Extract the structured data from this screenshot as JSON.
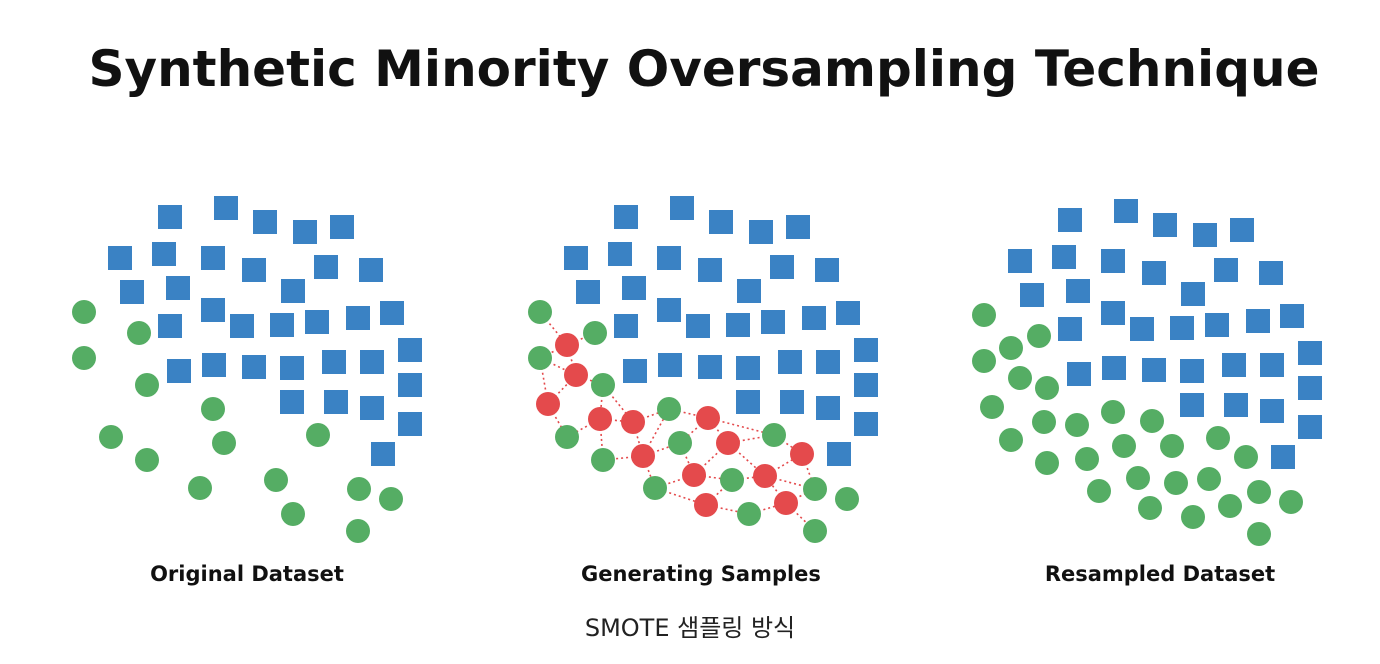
{
  "title": "Synthetic Minority Oversampling Technique",
  "caption": "SMOTE 샘플링 방식",
  "colors": {
    "majority": "#3a82c4",
    "minority": "#55ad64",
    "synthetic": "#e44a4c",
    "link": "#e44a4c"
  },
  "panels": [
    {
      "label": "Original Dataset",
      "majority": [
        [
          170,
          217
        ],
        [
          226,
          208
        ],
        [
          265,
          222
        ],
        [
          305,
          232
        ],
        [
          342,
          227
        ],
        [
          120,
          258
        ],
        [
          164,
          254
        ],
        [
          213,
          258
        ],
        [
          254,
          270
        ],
        [
          326,
          267
        ],
        [
          371,
          270
        ],
        [
          132,
          292
        ],
        [
          178,
          288
        ],
        [
          293,
          291
        ],
        [
          170,
          326
        ],
        [
          213,
          310
        ],
        [
          242,
          326
        ],
        [
          282,
          325
        ],
        [
          317,
          322
        ],
        [
          358,
          318
        ],
        [
          392,
          313
        ],
        [
          179,
          371
        ],
        [
          214,
          365
        ],
        [
          254,
          367
        ],
        [
          292,
          368
        ],
        [
          334,
          362
        ],
        [
          372,
          362
        ],
        [
          410,
          350
        ],
        [
          410,
          385
        ],
        [
          292,
          402
        ],
        [
          336,
          402
        ],
        [
          372,
          408
        ],
        [
          410,
          424
        ],
        [
          383,
          454
        ]
      ],
      "minority": [
        [
          84,
          312
        ],
        [
          139,
          333
        ],
        [
          84,
          358
        ],
        [
          147,
          385
        ],
        [
          213,
          409
        ],
        [
          111,
          437
        ],
        [
          224,
          443
        ],
        [
          318,
          435
        ],
        [
          147,
          460
        ],
        [
          200,
          488
        ],
        [
          276,
          480
        ],
        [
          359,
          489
        ],
        [
          391,
          499
        ],
        [
          293,
          514
        ],
        [
          358,
          531
        ]
      ],
      "synthetic": [],
      "links": []
    },
    {
      "label": "Generating Samples",
      "majority": [
        [
          626,
          217
        ],
        [
          682,
          208
        ],
        [
          721,
          222
        ],
        [
          761,
          232
        ],
        [
          798,
          227
        ],
        [
          576,
          258
        ],
        [
          620,
          254
        ],
        [
          669,
          258
        ],
        [
          710,
          270
        ],
        [
          782,
          267
        ],
        [
          827,
          270
        ],
        [
          588,
          292
        ],
        [
          634,
          288
        ],
        [
          749,
          291
        ],
        [
          626,
          326
        ],
        [
          669,
          310
        ],
        [
          698,
          326
        ],
        [
          738,
          325
        ],
        [
          773,
          322
        ],
        [
          814,
          318
        ],
        [
          848,
          313
        ],
        [
          635,
          371
        ],
        [
          670,
          365
        ],
        [
          710,
          367
        ],
        [
          748,
          368
        ],
        [
          790,
          362
        ],
        [
          828,
          362
        ],
        [
          866,
          350
        ],
        [
          866,
          385
        ],
        [
          748,
          402
        ],
        [
          792,
          402
        ],
        [
          828,
          408
        ],
        [
          866,
          424
        ],
        [
          839,
          454
        ]
      ],
      "minority": [
        [
          540,
          312
        ],
        [
          595,
          333
        ],
        [
          540,
          358
        ],
        [
          603,
          385
        ],
        [
          669,
          409
        ],
        [
          567,
          437
        ],
        [
          680,
          443
        ],
        [
          774,
          435
        ],
        [
          603,
          460
        ],
        [
          655,
          488
        ],
        [
          732,
          480
        ],
        [
          815,
          489
        ],
        [
          847,
          499
        ],
        [
          749,
          514
        ],
        [
          815,
          531
        ]
      ],
      "synthetic": [
        [
          567,
          345
        ],
        [
          576,
          375
        ],
        [
          548,
          404
        ],
        [
          600,
          419
        ],
        [
          633,
          422
        ],
        [
          643,
          456
        ],
        [
          708,
          418
        ],
        [
          728,
          443
        ],
        [
          694,
          475
        ],
        [
          765,
          476
        ],
        [
          802,
          454
        ],
        [
          706,
          505
        ],
        [
          786,
          503
        ]
      ],
      "links": [
        [
          540,
          312,
          567,
          345
        ],
        [
          567,
          345,
          595,
          333
        ],
        [
          567,
          345,
          540,
          358
        ],
        [
          540,
          358,
          576,
          375
        ],
        [
          576,
          375,
          603,
          385
        ],
        [
          567,
          345,
          576,
          375
        ],
        [
          540,
          358,
          548,
          404
        ],
        [
          548,
          404,
          567,
          437
        ],
        [
          548,
          404,
          576,
          375
        ],
        [
          603,
          385,
          600,
          419
        ],
        [
          600,
          419,
          567,
          437
        ],
        [
          600,
          419,
          603,
          460
        ],
        [
          600,
          419,
          633,
          422
        ],
        [
          603,
          385,
          633,
          422
        ],
        [
          633,
          422,
          669,
          409
        ],
        [
          633,
          422,
          643,
          456
        ],
        [
          643,
          456,
          603,
          460
        ],
        [
          643,
          456,
          680,
          443
        ],
        [
          643,
          456,
          669,
          409
        ],
        [
          669,
          409,
          708,
          418
        ],
        [
          708,
          418,
          680,
          443
        ],
        [
          708,
          418,
          728,
          443
        ],
        [
          708,
          418,
          774,
          435
        ],
        [
          728,
          443,
          774,
          435
        ],
        [
          728,
          443,
          694,
          475
        ],
        [
          680,
          443,
          694,
          475
        ],
        [
          694,
          475,
          655,
          488
        ],
        [
          694,
          475,
          732,
          480
        ],
        [
          732,
          480,
          765,
          476
        ],
        [
          765,
          476,
          802,
          454
        ],
        [
          774,
          435,
          802,
          454
        ],
        [
          802,
          454,
          815,
          489
        ],
        [
          765,
          476,
          815,
          489
        ],
        [
          655,
          488,
          706,
          505
        ],
        [
          706,
          505,
          749,
          514
        ],
        [
          706,
          505,
          732,
          480
        ],
        [
          749,
          514,
          786,
          503
        ],
        [
          786,
          503,
          815,
          489
        ],
        [
          786,
          503,
          765,
          476
        ],
        [
          786,
          503,
          815,
          531
        ],
        [
          643,
          456,
          655,
          488
        ],
        [
          728,
          443,
          765,
          476
        ]
      ]
    },
    {
      "label": "Resampled Dataset",
      "majority": [
        [
          1070,
          220
        ],
        [
          1126,
          211
        ],
        [
          1165,
          225
        ],
        [
          1205,
          235
        ],
        [
          1242,
          230
        ],
        [
          1020,
          261
        ],
        [
          1064,
          257
        ],
        [
          1113,
          261
        ],
        [
          1154,
          273
        ],
        [
          1226,
          270
        ],
        [
          1271,
          273
        ],
        [
          1032,
          295
        ],
        [
          1078,
          291
        ],
        [
          1193,
          294
        ],
        [
          1070,
          329
        ],
        [
          1113,
          313
        ],
        [
          1142,
          329
        ],
        [
          1182,
          328
        ],
        [
          1217,
          325
        ],
        [
          1258,
          321
        ],
        [
          1292,
          316
        ],
        [
          1079,
          374
        ],
        [
          1114,
          368
        ],
        [
          1154,
          370
        ],
        [
          1192,
          371
        ],
        [
          1234,
          365
        ],
        [
          1272,
          365
        ],
        [
          1310,
          353
        ],
        [
          1310,
          388
        ],
        [
          1192,
          405
        ],
        [
          1236,
          405
        ],
        [
          1272,
          411
        ],
        [
          1310,
          427
        ],
        [
          1283,
          457
        ]
      ],
      "minority": [
        [
          984,
          315
        ],
        [
          1039,
          336
        ],
        [
          984,
          361
        ],
        [
          1047,
          388
        ],
        [
          1113,
          412
        ],
        [
          1011,
          440
        ],
        [
          1124,
          446
        ],
        [
          1218,
          438
        ],
        [
          1047,
          463
        ],
        [
          1099,
          491
        ],
        [
          1176,
          483
        ],
        [
          1259,
          492
        ],
        [
          1291,
          502
        ],
        [
          1193,
          517
        ],
        [
          1259,
          534
        ],
        [
          1011,
          348
        ],
        [
          1020,
          378
        ],
        [
          992,
          407
        ],
        [
          1044,
          422
        ],
        [
          1077,
          425
        ],
        [
          1087,
          459
        ],
        [
          1152,
          421
        ],
        [
          1172,
          446
        ],
        [
          1138,
          478
        ],
        [
          1209,
          479
        ],
        [
          1246,
          457
        ],
        [
          1150,
          508
        ],
        [
          1230,
          506
        ]
      ],
      "synthetic": [],
      "links": []
    }
  ]
}
